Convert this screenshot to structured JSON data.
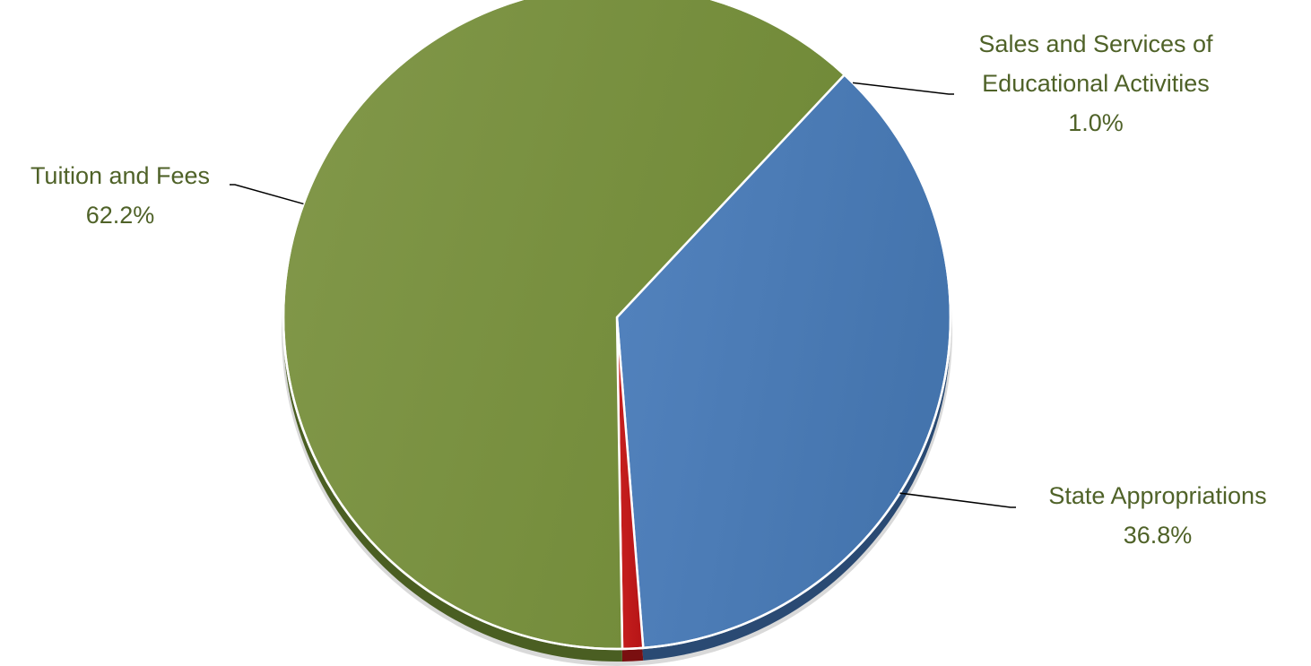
{
  "chart_data": {
    "type": "pie",
    "title": "",
    "slices": [
      {
        "label": "State Appropriations",
        "value": 36.8,
        "value_label": "36.8%",
        "color": "#4a7ab5"
      },
      {
        "label": "Sales and Services of Educational Activities",
        "label_lines": [
          "Sales and Services of",
          "Educational Activities"
        ],
        "value": 1.0,
        "value_label": "1.0%",
        "color": "#c0191b"
      },
      {
        "label": "Tuition and Fees",
        "value": 62.2,
        "value_label": "62.2%",
        "color": "#77933c"
      }
    ],
    "label_color": "#4f6228",
    "style": "3d-pie-with-leader-lines",
    "legend": "none"
  }
}
